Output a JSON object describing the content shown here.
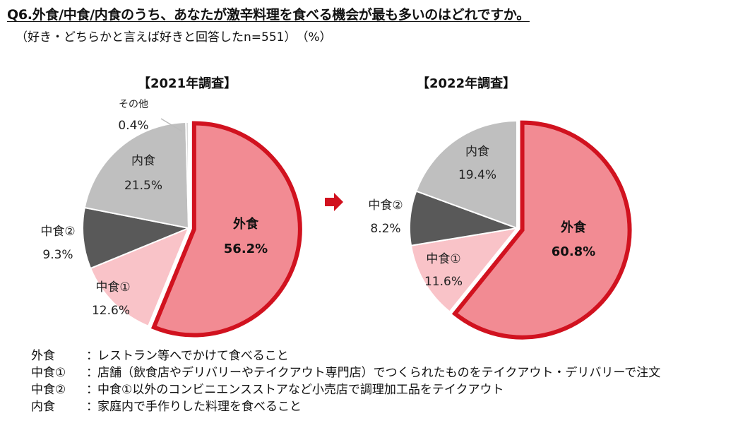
{
  "header": {
    "question": "Q6.外食/中食/内食のうち、あなたが激辛料理を食べる機会が最も多いのはどれですか。",
    "note": "（好き・どちらかと言えば好きと回答したn=551）　（%）"
  },
  "arrow_icon": "right-arrow",
  "colors": {
    "外食": "#f28b93",
    "中食①": "#f9c3c8",
    "中食②": "#595959",
    "内食": "#bfbfbf",
    "その他": "#d9d9d9",
    "highlight_border": "#d1121f"
  },
  "chart_data": [
    {
      "type": "pie",
      "title": "【2021年調査】",
      "categories": [
        "外食",
        "中食①",
        "中食②",
        "内食",
        "その他"
      ],
      "values": [
        56.2,
        12.6,
        9.3,
        21.5,
        0.4
      ],
      "value_labels": [
        "56.2%",
        "12.6%",
        "9.3%",
        "21.5%",
        "0.4%"
      ],
      "highlight": "外食"
    },
    {
      "type": "pie",
      "title": "【2022年調査】",
      "categories": [
        "外食",
        "中食①",
        "中食②",
        "内食"
      ],
      "values": [
        60.8,
        11.6,
        8.2,
        19.4
      ],
      "value_labels": [
        "60.8%",
        "11.6%",
        "8.2%",
        "19.4%"
      ],
      "highlight": "外食"
    }
  ],
  "legend": [
    {
      "key": "外食",
      "sep": "：",
      "desc": "レストラン等へでかけて食べること"
    },
    {
      "key": "中食①",
      "sep": "：",
      "desc": "店舗（飲食店やデリバリーやテイクアウト専門店）でつくられたものをテイクアウト・デリバリーで注文"
    },
    {
      "key": "中食②",
      "sep": "：",
      "desc": "中食①以外のコンビニエンスストアなど小売店で調理加工品をテイクアウト"
    },
    {
      "key": "内食",
      "sep": "：",
      "desc": "家庭内で手作りした料理を食べること"
    }
  ]
}
